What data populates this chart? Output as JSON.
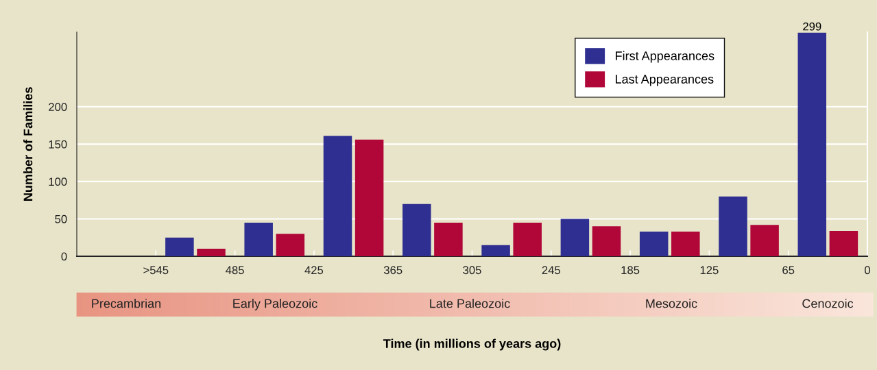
{
  "chart_data": {
    "type": "bar",
    "ylabel": "Number of Families",
    "categories": [
      null,
      null,
      null,
      null,
      null,
      null,
      null,
      null,
      null,
      null
    ],
    "series": [
      {
        "name": "First Appearances",
        "color": "#2e2f91",
        "values": [
          null,
          25,
          45,
          161,
          70,
          15,
          50,
          33,
          80,
          299
        ],
        "value_labels": [
          null,
          null,
          null,
          null,
          null,
          null,
          null,
          null,
          null,
          "299"
        ]
      },
      {
        "name": "Last Appearances",
        "color": "#b00638",
        "values": [
          null,
          10,
          30,
          156,
          45,
          45,
          40,
          33,
          42,
          34
        ]
      }
    ],
    "ylim": [
      0,
      300
    ],
    "yticks": [
      0,
      50,
      100,
      150,
      200
    ],
    "grid": "y",
    "legend": "top right",
    "annotations": [
      ">545",
      "485",
      "425",
      "365",
      "305",
      "245",
      "185",
      "125",
      "65",
      "0",
      "Precambrian",
      "Early Paleozoic",
      "Late Paleozoic",
      "Mesozoic",
      "Cenozoic",
      "Time (in millions of years ago)"
    ]
  }
}
